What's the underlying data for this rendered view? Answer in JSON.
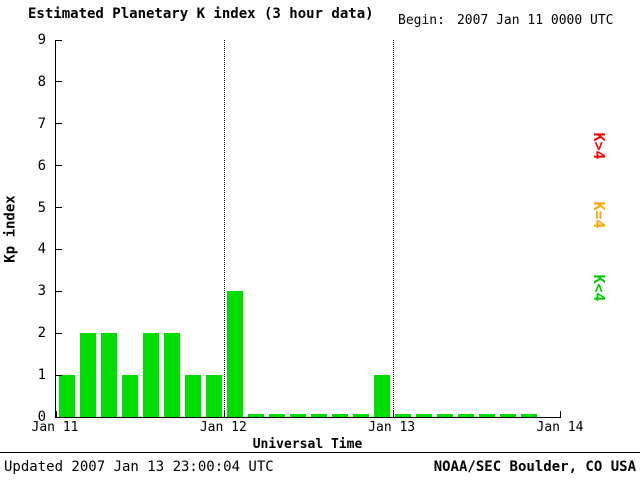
{
  "header": {
    "title": "Estimated Planetary K index (3 hour data)",
    "begin_label": "Begin:",
    "begin_value": "2007 Jan 11 0000 UTC"
  },
  "footer": {
    "updated": "Updated 2007 Jan 13 23:00:04 UTC",
    "source": "NOAA/SEC Boulder, CO USA"
  },
  "chart_data": {
    "type": "bar",
    "title": "Estimated Planetary K index (3 hour data)",
    "begin": "2007 Jan 11 0000 UTC",
    "xlabel": "Universal Time",
    "ylabel": "Kp index",
    "ylim": [
      0,
      9
    ],
    "y_ticks": [
      0,
      1,
      2,
      3,
      4,
      5,
      6,
      7,
      8,
      9
    ],
    "x_tick_labels": [
      "Jan 11",
      "Jan 12",
      "Jan 13",
      "Jan 14"
    ],
    "slots_per_day": 8,
    "days_span": 3,
    "bar_color": "#00dd00",
    "grid": "dotted-day-boundaries",
    "legend_position": "right",
    "legend": [
      {
        "label": "K>4",
        "color": "#ff0000"
      },
      {
        "label": "K=4",
        "color": "#ffa500"
      },
      {
        "label": "K<4",
        "color": "#00cc00"
      }
    ],
    "days": [
      {
        "date": "2007 Jan 11",
        "values": [
          1,
          2,
          2,
          1,
          2,
          2,
          1,
          1
        ]
      },
      {
        "date": "2007 Jan 12",
        "values": [
          3,
          0,
          0,
          0,
          0,
          0,
          0,
          1
        ]
      },
      {
        "date": "2007 Jan 13",
        "values": [
          0,
          0,
          0,
          0,
          0,
          0,
          0
        ]
      }
    ]
  }
}
